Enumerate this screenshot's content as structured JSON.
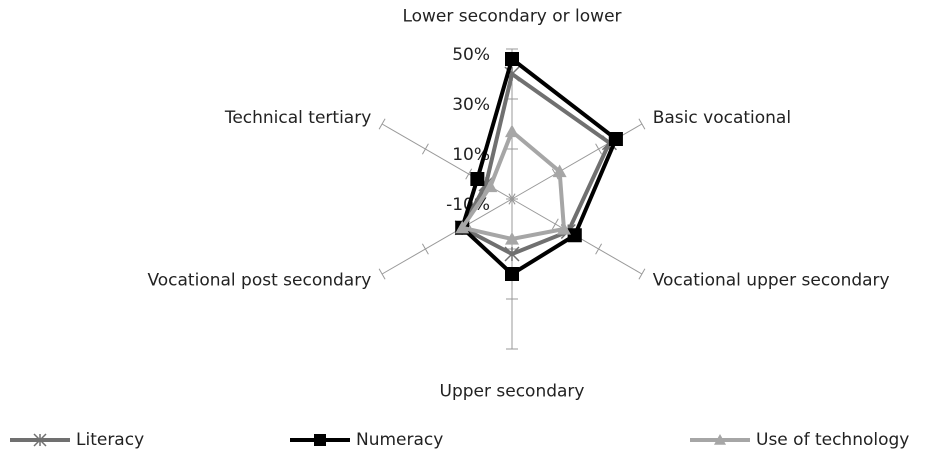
{
  "chart_data": {
    "type": "radar",
    "categories": [
      "Lower secondary or lower",
      "Basic vocational",
      "Vocational upper secondary",
      "Upper secondary",
      "Vocational post secondary",
      "Technical tertiary"
    ],
    "ylim": [
      -10,
      50
    ],
    "yticks": [
      {
        "value": -10,
        "label": "-10%"
      },
      {
        "value": 10,
        "label": "10%"
      },
      {
        "value": 30,
        "label": "30%"
      },
      {
        "value": 50,
        "label": "50%"
      }
    ],
    "legend": "bottom",
    "series": [
      {
        "name": "Literacy",
        "color": "#707070",
        "marker": "star",
        "values": [
          40,
          35,
          16,
          12,
          13,
          2
        ]
      },
      {
        "name": "Numeracy",
        "color": "#000000",
        "marker": "square",
        "values": [
          46,
          38,
          19,
          20,
          13,
          6
        ]
      },
      {
        "name": "Use of technology",
        "color": "#a6a6a6",
        "marker": "triangle",
        "values": [
          17,
          12,
          14,
          6,
          13,
          0
        ]
      }
    ]
  }
}
